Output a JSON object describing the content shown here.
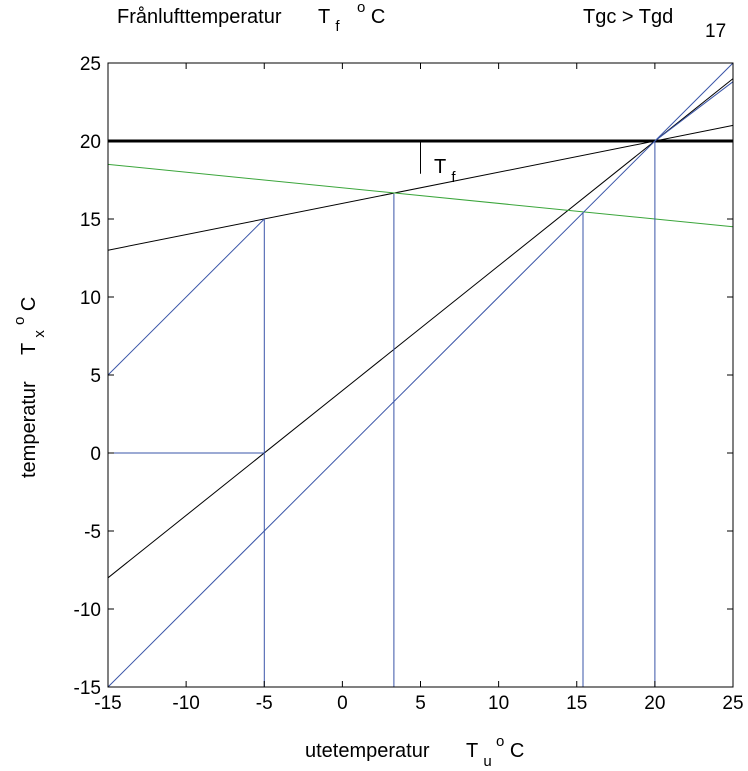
{
  "chart_data": {
    "type": "line",
    "title": "Frånlufttemperatur",
    "title_symbol": "T",
    "title_sub": "f",
    "title_unit_sup": "o",
    "title_unit": "C",
    "annotation_top_right": "Tgc > Tgd",
    "annotation_number": "17",
    "inner_label": "T",
    "inner_label_sub": "f",
    "xlabel": "utetemperatur",
    "xlabel_symbol": "T",
    "xlabel_sub": "u",
    "xlabel_unit_sup": "o",
    "xlabel_unit": "C",
    "ylabel": "temperatur",
    "ylabel_symbol": "T",
    "ylabel_sub": "x",
    "ylabel_unit_sup": "o",
    "ylabel_unit": "C",
    "xlim": [
      -15,
      25
    ],
    "ylim": [
      -15,
      25
    ],
    "xticks": [
      -15,
      -10,
      -5,
      0,
      5,
      10,
      15,
      20,
      25
    ],
    "yticks": [
      -15,
      -10,
      -5,
      0,
      5,
      10,
      15,
      20,
      25
    ],
    "grid": false,
    "colors": {
      "black": "#000000",
      "blue": "#3a55a8",
      "green": "#3aa53a"
    },
    "series": [
      {
        "color": "black",
        "width": 3,
        "x": [
          -15,
          25
        ],
        "y": [
          20,
          20
        ]
      },
      {
        "color": "black",
        "width": 1,
        "x": [
          -15,
          25
        ],
        "y": [
          13,
          21
        ]
      },
      {
        "color": "black",
        "width": 1,
        "x": [
          -15,
          25
        ],
        "y": [
          -8,
          24
        ]
      },
      {
        "color": "black",
        "width": 1,
        "x": [
          5,
          5
        ],
        "y": [
          20,
          17.9
        ]
      },
      {
        "color": "green",
        "width": 1,
        "x": [
          -15,
          25
        ],
        "y": [
          18.5,
          14.5
        ]
      },
      {
        "color": "blue",
        "width": 1,
        "x": [
          -15,
          25
        ],
        "y": [
          -15,
          25
        ]
      },
      {
        "color": "blue",
        "width": 1,
        "x": [
          -15,
          -5
        ],
        "y": [
          5,
          15
        ]
      },
      {
        "color": "blue",
        "width": 1,
        "x": [
          20,
          25
        ],
        "y": [
          20,
          23.8
        ]
      },
      {
        "color": "blue",
        "width": 1,
        "x": [
          -15,
          -5
        ],
        "y": [
          0,
          0
        ]
      },
      {
        "color": "blue",
        "width": 1,
        "x": [
          -5,
          -5
        ],
        "y": [
          -15,
          15
        ]
      },
      {
        "color": "blue",
        "width": 1,
        "x": [
          3.3,
          3.3
        ],
        "y": [
          -15,
          16.6
        ]
      },
      {
        "color": "blue",
        "width": 1,
        "x": [
          15.4,
          15.4
        ],
        "y": [
          -15,
          15.4
        ]
      },
      {
        "color": "blue",
        "width": 1,
        "x": [
          20,
          20
        ],
        "y": [
          -15,
          20
        ]
      }
    ]
  }
}
